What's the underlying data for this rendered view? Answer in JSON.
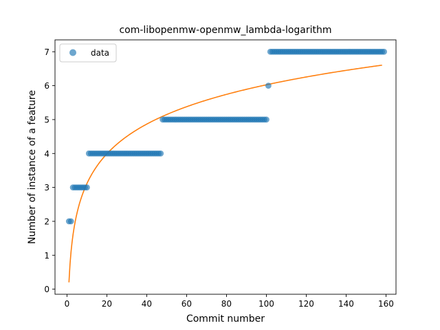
{
  "chart_data": {
    "type": "scatter",
    "title": "com-libopenmw-openmw_lambda-logarithm",
    "xlabel": "Commit number",
    "ylabel": "Number of instance of a feature",
    "xlim": [
      -6,
      165
    ],
    "ylim": [
      -0.15,
      7.35
    ],
    "xticks": [
      0,
      20,
      40,
      60,
      80,
      100,
      120,
      140,
      160
    ],
    "yticks": [
      0,
      1,
      2,
      3,
      4,
      5,
      6,
      7
    ],
    "grid": false,
    "legend": {
      "position": "top-left",
      "entries": [
        "data"
      ]
    },
    "colors": {
      "data": "#1f77b4",
      "fit": "#ff7f0e"
    },
    "series": [
      {
        "name": "data",
        "kind": "scatter",
        "segments": [
          {
            "x_from": 1,
            "x_to": 2,
            "y": 2
          },
          {
            "x_from": 3,
            "x_to": 10,
            "y": 3
          },
          {
            "x_from": 11,
            "x_to": 47,
            "y": 4
          },
          {
            "x_from": 48,
            "x_to": 100,
            "y": 5
          },
          {
            "x_from": 101,
            "x_to": 101,
            "y": 6
          },
          {
            "x_from": 102,
            "x_to": 159,
            "y": 7
          }
        ]
      },
      {
        "kind": "line",
        "function": "logarithmic",
        "x_range": [
          1,
          158
        ],
        "a": 0.2,
        "b": 1.265
      }
    ]
  }
}
